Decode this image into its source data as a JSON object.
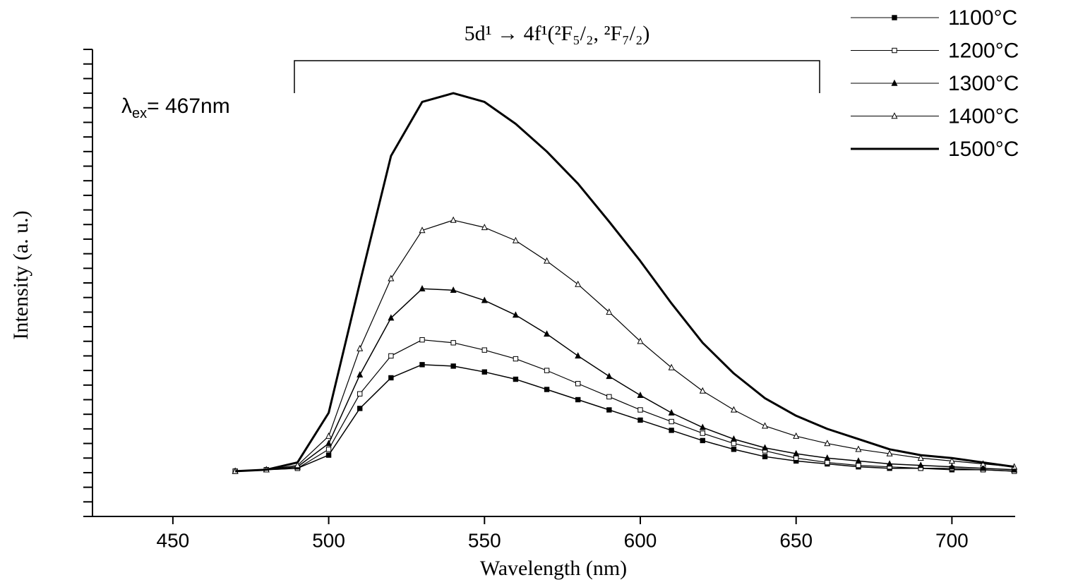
{
  "chart_data": {
    "type": "line",
    "x_label": "Wavelength (nm)",
    "y_label": "Intensity (a. u.)",
    "annotation": "5d¹ → 4f¹(²F₅/₂, ²F₇/₂)",
    "excitation_label": {
      "symbol": "λ",
      "sub": "ex",
      "text": "= 467nm"
    },
    "x": [
      470,
      480,
      490,
      500,
      510,
      520,
      530,
      540,
      550,
      560,
      570,
      580,
      590,
      600,
      610,
      620,
      630,
      640,
      650,
      660,
      670,
      680,
      690,
      700,
      710,
      720
    ],
    "series": [
      {
        "name": "1100°C",
        "color": "#000000",
        "marker": "square-filled",
        "line_width": 1.5,
        "values": [
          3.1,
          3.2,
          3.3,
          4.2,
          7.4,
          9.5,
          10.4,
          10.3,
          9.9,
          9.4,
          8.7,
          8.0,
          7.3,
          6.6,
          5.9,
          5.2,
          4.6,
          4.1,
          3.8,
          3.6,
          3.4,
          3.3,
          3.3,
          3.2,
          3.2,
          3.1
        ]
      },
      {
        "name": "1200°C",
        "color": "#000000",
        "marker": "square-open",
        "line_width": 1.2,
        "values": [
          3.1,
          3.2,
          3.3,
          4.6,
          8.4,
          11.0,
          12.1,
          11.9,
          11.4,
          10.8,
          10.0,
          9.1,
          8.2,
          7.3,
          6.5,
          5.7,
          5.0,
          4.5,
          4.0,
          3.7,
          3.5,
          3.4,
          3.3,
          3.3,
          3.2,
          3.1
        ]
      },
      {
        "name": "1300°C",
        "color": "#000000",
        "marker": "triangle-filled",
        "line_width": 1.5,
        "values": [
          3.1,
          3.2,
          3.4,
          5.0,
          9.7,
          13.6,
          15.6,
          15.5,
          14.8,
          13.8,
          12.5,
          11.0,
          9.6,
          8.3,
          7.1,
          6.1,
          5.3,
          4.7,
          4.3,
          4.0,
          3.8,
          3.6,
          3.5,
          3.4,
          3.3,
          3.2
        ]
      },
      {
        "name": "1400°C",
        "color": "#000000",
        "marker": "triangle-open",
        "line_width": 1.2,
        "values": [
          3.1,
          3.2,
          3.5,
          5.5,
          11.5,
          16.3,
          19.6,
          20.3,
          19.8,
          18.9,
          17.5,
          15.9,
          14.0,
          12.0,
          10.2,
          8.6,
          7.3,
          6.2,
          5.5,
          5.0,
          4.6,
          4.3,
          4.0,
          3.8,
          3.6,
          3.4
        ]
      },
      {
        "name": "1500°C",
        "color": "#000000",
        "marker": "none",
        "line_width": 3,
        "values": [
          3.1,
          3.2,
          3.7,
          7.1,
          16.0,
          24.7,
          28.4,
          29.0,
          28.4,
          26.9,
          25.0,
          22.8,
          20.2,
          17.5,
          14.6,
          11.9,
          9.8,
          8.1,
          6.9,
          6.0,
          5.3,
          4.6,
          4.2,
          4.0,
          3.7,
          3.4
        ]
      }
    ],
    "xlim": [
      424.2,
      720.3
    ],
    "xticks": [
      450,
      500,
      550,
      600,
      650,
      700
    ],
    "ylim": [
      0,
      32
    ],
    "yticks": [
      0,
      1,
      2,
      3,
      4,
      5,
      6,
      7,
      8,
      9,
      10,
      11,
      12,
      13,
      14,
      15,
      16,
      17,
      18,
      19,
      20,
      21,
      22,
      23,
      24,
      25,
      26,
      27,
      28,
      29,
      30,
      31,
      32
    ],
    "ytick_labels": false,
    "grid": false,
    "legend": "top-right"
  }
}
